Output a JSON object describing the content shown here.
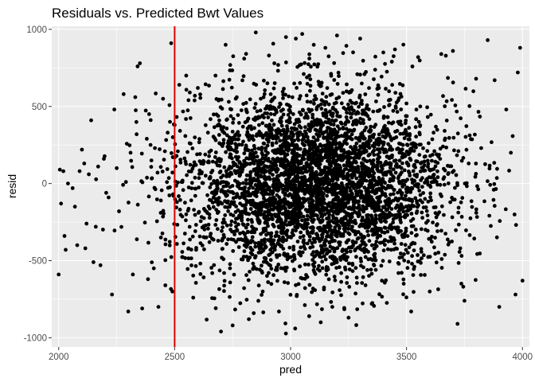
{
  "chart_data": {
    "type": "scatter",
    "title": "Residuals vs. Predicted Bwt Values",
    "xlabel": "pred",
    "ylabel": "resid",
    "xlim": [
      1970,
      4030
    ],
    "ylim": [
      -1060,
      1020
    ],
    "x_ticks": [
      2000,
      2500,
      3000,
      3500,
      4000
    ],
    "x_tick_labels": [
      "2000",
      "2500",
      "3000",
      "3500",
      "4000"
    ],
    "y_ticks": [
      -1000,
      -500,
      0,
      500,
      1000
    ],
    "y_tick_labels": [
      "-1000",
      "-500",
      "0",
      "500",
      "1000"
    ],
    "x_minor": [
      2250,
      2750,
      3250,
      3750
    ],
    "y_minor": [
      -750,
      -250,
      250,
      750
    ],
    "grid": true,
    "vline": {
      "x": 2500,
      "color": "#e00000"
    },
    "colors": {
      "panel": "#ebebeb",
      "grid": "#ffffff",
      "point": "#000000"
    },
    "points_summary": {
      "n": 4342,
      "x_center": 3120,
      "x_sd": 290,
      "y_mean": 0,
      "y_sd": 300,
      "note_text": ""
    },
    "points": [
      [
        2000,
        -590
      ],
      [
        2005,
        90
      ],
      [
        2010,
        -130
      ],
      [
        2020,
        80
      ],
      [
        2025,
        -340
      ],
      [
        2030,
        -430
      ],
      [
        2040,
        0
      ],
      [
        2060,
        -30
      ],
      [
        2070,
        -150
      ],
      [
        2080,
        -400
      ],
      [
        2090,
        80
      ],
      [
        2100,
        220
      ],
      [
        2110,
        130
      ],
      [
        2115,
        -420
      ],
      [
        2120,
        -260
      ],
      [
        2130,
        60
      ],
      [
        2140,
        410
      ],
      [
        2150,
        -510
      ],
      [
        2160,
        -280
      ],
      [
        2170,
        110
      ],
      [
        2180,
        -530
      ],
      [
        2195,
        160
      ],
      [
        2205,
        -60
      ],
      [
        2215,
        -90
      ],
      [
        2230,
        -720
      ],
      [
        2240,
        480
      ],
      [
        2250,
        100
      ],
      [
        2260,
        -180
      ],
      [
        2280,
        580
      ],
      [
        2290,
        10
      ],
      [
        2300,
        -830
      ],
      [
        2310,
        200
      ],
      [
        2320,
        -590
      ],
      [
        2330,
        560
      ],
      [
        2340,
        760
      ],
      [
        2350,
        780
      ],
      [
        2360,
        -810
      ],
      [
        2380,
        290
      ],
      [
        2385,
        -620
      ],
      [
        2390,
        450
      ],
      [
        2400,
        150
      ],
      [
        2410,
        -550
      ],
      [
        2430,
        -800
      ],
      [
        2440,
        -190
      ],
      [
        2450,
        550
      ],
      [
        2460,
        -660
      ],
      [
        2470,
        330
      ],
      [
        2480,
        400
      ],
      [
        2485,
        910
      ],
      [
        2490,
        -700
      ],
      [
        2495,
        -80
      ],
      [
        2500,
        380
      ],
      [
        2510,
        -120
      ],
      [
        2520,
        640
      ],
      [
        2530,
        10
      ],
      [
        2550,
        700
      ],
      [
        2560,
        -420
      ],
      [
        2580,
        -740
      ],
      [
        2600,
        620
      ],
      [
        2650,
        -380
      ],
      [
        2700,
        -960
      ],
      [
        2720,
        900
      ],
      [
        2750,
        -920
      ],
      [
        2780,
        50
      ],
      [
        2800,
        810
      ],
      [
        2820,
        -880
      ],
      [
        2850,
        980
      ],
      [
        2880,
        -700
      ],
      [
        2900,
        650
      ],
      [
        2930,
        780
      ],
      [
        2950,
        -830
      ],
      [
        2980,
        950
      ],
      [
        3020,
        -940
      ],
      [
        3050,
        970
      ],
      [
        3080,
        -860
      ],
      [
        3100,
        900
      ],
      [
        3130,
        -900
      ],
      [
        3150,
        880
      ],
      [
        3180,
        -800
      ],
      [
        3200,
        960
      ],
      [
        3250,
        -870
      ],
      [
        3300,
        940
      ],
      [
        3350,
        -780
      ],
      [
        3400,
        850
      ],
      [
        3450,
        870
      ],
      [
        3520,
        -830
      ],
      [
        3550,
        820
      ],
      [
        3600,
        -700
      ],
      [
        3650,
        840
      ],
      [
        3700,
        860
      ],
      [
        3720,
        -910
      ],
      [
        3750,
        -760
      ],
      [
        3800,
        680
      ],
      [
        3850,
        930
      ],
      [
        3880,
        670
      ],
      [
        3900,
        -800
      ],
      [
        3930,
        480
      ],
      [
        3950,
        200
      ],
      [
        3970,
        -720
      ],
      [
        3980,
        720
      ],
      [
        3990,
        880
      ],
      [
        4000,
        -630
      ]
    ]
  }
}
